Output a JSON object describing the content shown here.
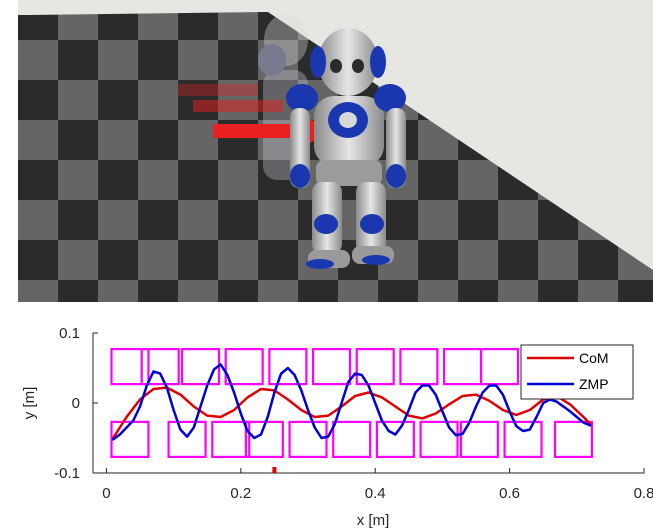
{
  "scene": {
    "image_kind": "simulation-render",
    "subject_icon": "humanoid-robot-icon",
    "push_indicator_icon": "red-arrow-icon",
    "floor_colors": [
      "#2f2f2f",
      "#6e6e6e"
    ],
    "wall_color": "#e6e6e2",
    "arrow_color": "#e82020"
  },
  "chart_data": {
    "type": "line",
    "title": "",
    "xlabel": "x [m]",
    "ylabel": "y [m]",
    "xlim": [
      -0.02,
      0.8
    ],
    "ylim": [
      -0.1,
      0.1
    ],
    "xticks": [
      0,
      0.2,
      0.4,
      0.6,
      0.8
    ],
    "xtick_labels": [
      "0",
      "0.2",
      "0.4",
      "0.6",
      "0.8"
    ],
    "yticks": [
      -0.1,
      0,
      0.1
    ],
    "ytick_labels": [
      "-0.1",
      "0",
      "0.1"
    ],
    "grid": false,
    "legend_position": "top-right",
    "series": [
      {
        "name": "CoM",
        "color": "#e00000",
        "x": [
          0.01,
          0.03,
          0.05,
          0.07,
          0.09,
          0.11,
          0.13,
          0.15,
          0.17,
          0.19,
          0.21,
          0.23,
          0.25,
          0.27,
          0.29,
          0.31,
          0.33,
          0.35,
          0.37,
          0.39,
          0.41,
          0.43,
          0.45,
          0.47,
          0.49,
          0.51,
          0.53,
          0.55,
          0.57,
          0.59,
          0.61,
          0.63,
          0.65,
          0.67,
          0.69,
          0.71,
          0.72
        ],
        "y": [
          -0.05,
          -0.02,
          0.005,
          0.02,
          0.022,
          0.012,
          -0.005,
          -0.018,
          -0.02,
          -0.01,
          0.008,
          0.02,
          0.018,
          0.005,
          -0.01,
          -0.02,
          -0.018,
          -0.005,
          0.01,
          0.015,
          0.008,
          -0.005,
          -0.018,
          -0.022,
          -0.015,
          -0.002,
          0.01,
          0.012,
          0.003,
          -0.01,
          -0.017,
          -0.01,
          0.005,
          0.01,
          -0.002,
          -0.02,
          -0.03
        ]
      },
      {
        "name": "ZMP",
        "color": "#0000d8",
        "x": [
          0.01,
          0.02,
          0.03,
          0.04,
          0.05,
          0.06,
          0.07,
          0.08,
          0.09,
          0.1,
          0.11,
          0.12,
          0.13,
          0.14,
          0.15,
          0.16,
          0.17,
          0.18,
          0.19,
          0.2,
          0.21,
          0.22,
          0.23,
          0.24,
          0.25,
          0.26,
          0.27,
          0.28,
          0.29,
          0.3,
          0.31,
          0.32,
          0.33,
          0.34,
          0.35,
          0.36,
          0.37,
          0.38,
          0.39,
          0.4,
          0.41,
          0.42,
          0.43,
          0.44,
          0.45,
          0.46,
          0.47,
          0.48,
          0.49,
          0.5,
          0.51,
          0.52,
          0.53,
          0.54,
          0.55,
          0.56,
          0.57,
          0.58,
          0.59,
          0.6,
          0.61,
          0.62,
          0.63,
          0.64,
          0.65,
          0.66,
          0.67,
          0.68,
          0.69,
          0.7,
          0.71,
          0.72
        ],
        "y": [
          -0.052,
          -0.045,
          -0.035,
          -0.025,
          -0.005,
          0.025,
          0.045,
          0.042,
          0.022,
          -0.01,
          -0.038,
          -0.048,
          -0.035,
          -0.005,
          0.025,
          0.048,
          0.055,
          0.04,
          0.015,
          -0.015,
          -0.04,
          -0.05,
          -0.045,
          -0.02,
          0.015,
          0.042,
          0.05,
          0.04,
          0.018,
          -0.01,
          -0.035,
          -0.05,
          -0.048,
          -0.03,
          0.0,
          0.03,
          0.042,
          0.04,
          0.025,
          0.0,
          -0.025,
          -0.04,
          -0.045,
          -0.032,
          -0.01,
          0.015,
          0.025,
          0.025,
          0.012,
          -0.012,
          -0.035,
          -0.046,
          -0.044,
          -0.028,
          -0.005,
          0.015,
          0.025,
          0.025,
          0.012,
          -0.012,
          -0.033,
          -0.04,
          -0.038,
          -0.02,
          0.0,
          0.005,
          0.002,
          -0.005,
          -0.012,
          -0.02,
          -0.028,
          -0.032
        ]
      }
    ],
    "footprints": {
      "color": "#ff00ff",
      "width": 0.055,
      "height": 0.05,
      "upper_y_center": 0.052,
      "lower_y_center": -0.052,
      "upper_x_centers": [
        0.035,
        0.08,
        0.14,
        0.205,
        0.27,
        0.335,
        0.4,
        0.465,
        0.53,
        0.585
      ],
      "lower_x_centers": [
        0.035,
        0.12,
        0.185,
        0.235,
        0.3,
        0.365,
        0.43,
        0.495,
        0.555,
        0.62,
        0.695
      ]
    },
    "push_marker": {
      "x": 0.25,
      "color": "#e00000"
    }
  }
}
